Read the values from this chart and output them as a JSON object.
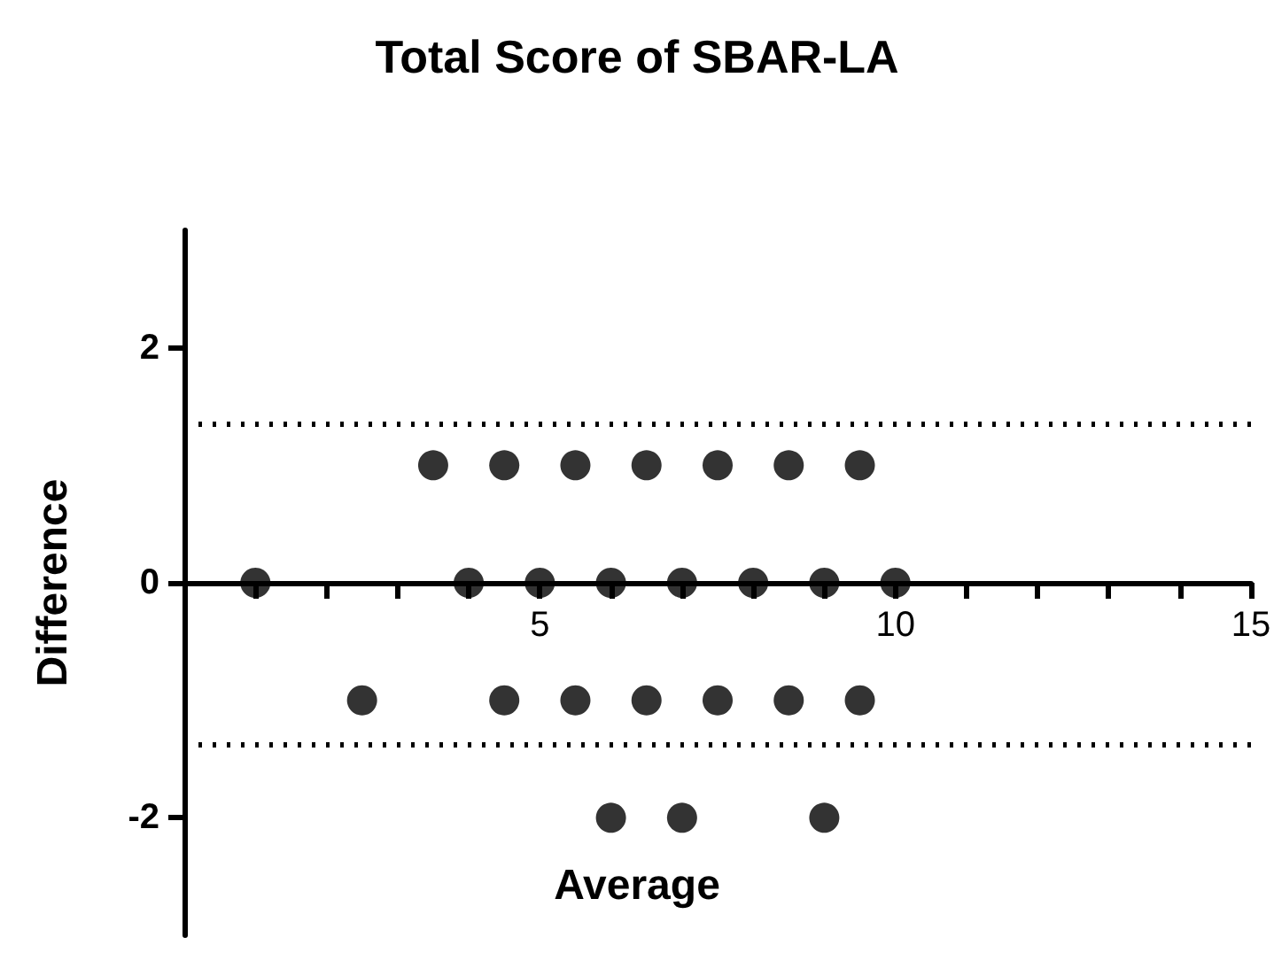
{
  "chart_data": {
    "type": "scatter",
    "title": "Total Score of SBAR-LA",
    "annotations": [
      "Average"
    ],
    "ylabel": "Difference",
    "x": [
      1,
      4,
      5,
      6,
      7,
      8,
      9,
      10,
      3.5,
      4.5,
      5.5,
      6.5,
      7.5,
      8.5,
      9.5,
      2.5,
      4.5,
      5.5,
      6.5,
      7.5,
      8.5,
      9.5,
      6,
      7,
      9
    ],
    "values": [
      0,
      0,
      0,
      0,
      0,
      0,
      0,
      0,
      1,
      1,
      1,
      1,
      1,
      1,
      1,
      -1,
      -1,
      -1,
      -1,
      -1,
      -1,
      -1,
      -2,
      -2,
      -2
    ],
    "color": "#000000",
    "marker": "circle",
    "xlim": [
      0,
      15
    ],
    "xticks": [
      {
        "value": 1,
        "label": null
      },
      {
        "value": 2,
        "label": null
      },
      {
        "value": 3,
        "label": null
      },
      {
        "value": 4,
        "label": null
      },
      5,
      {
        "value": 6,
        "label": null
      },
      {
        "value": 7,
        "label": null
      },
      {
        "value": 8,
        "label": null
      },
      {
        "value": 9,
        "label": null
      },
      10,
      {
        "value": 11,
        "label": null
      },
      {
        "value": 12,
        "label": null
      },
      {
        "value": 13,
        "label": null
      },
      {
        "value": 14,
        "label": null
      },
      15
    ],
    "ylim": [
      -3,
      3
    ],
    "yticks": [
      -2,
      0,
      2
    ],
    "ref_lines": [
      {
        "axis": "y",
        "value": 1.35,
        "line_style": "dotted",
        "color": "#000000"
      },
      {
        "axis": "y",
        "value": -1.38,
        "line_style": "dotted",
        "color": "#000000"
      }
    ],
    "grid": false
  }
}
